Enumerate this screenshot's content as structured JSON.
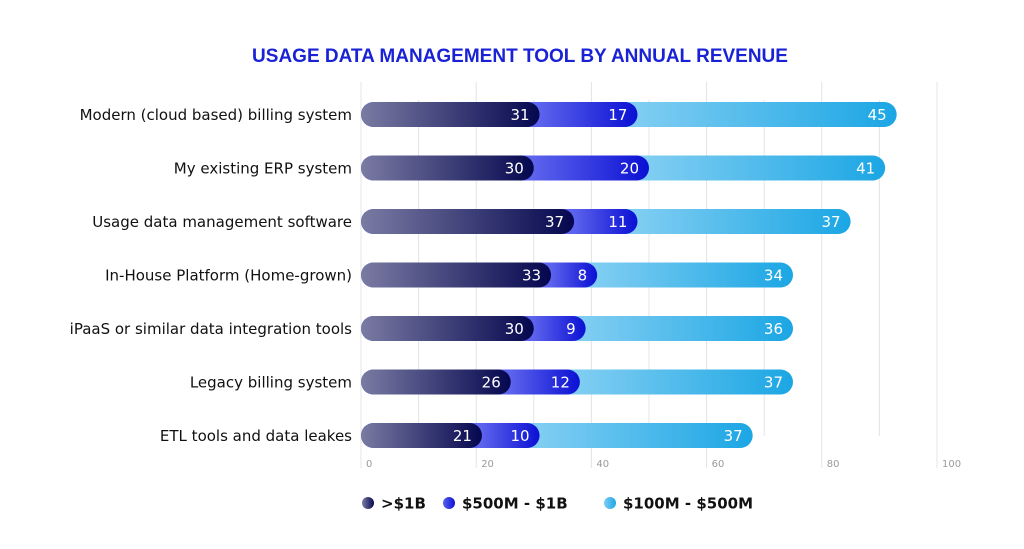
{
  "chart_data": {
    "type": "bar",
    "orientation": "horizontal",
    "stacked": true,
    "title": "USAGE DATA MANAGEMENT TOOL BY ANNUAL REVENUE",
    "xlabel": "",
    "ylabel": "",
    "xlim": [
      0,
      100
    ],
    "xticks": [
      0,
      20,
      40,
      60,
      80,
      100
    ],
    "grid": true,
    "legend_position": "bottom",
    "categories": [
      "Modern (cloud based) billing system",
      "My existing ERP system",
      "Usage data management software",
      "In-House Platform (Home-grown)",
      "iPaaS or similar data integration tools",
      "Legacy billing system",
      "ETL tools and data leakes"
    ],
    "series": [
      {
        "name": ">$1B",
        "color_start": "#7a7ba3",
        "color_end": "#05074f",
        "values": [
          31,
          30,
          37,
          33,
          30,
          26,
          21
        ]
      },
      {
        "name": "$500M - $1B",
        "color_start": "#5c63ec",
        "color_end": "#0b10d4",
        "values": [
          17,
          20,
          11,
          8,
          9,
          12,
          10
        ]
      },
      {
        "name": "$100M - $500M",
        "color_start": "#7fcdf2",
        "color_end": "#1ba6e4",
        "values": [
          45,
          41,
          37,
          34,
          36,
          37,
          37
        ]
      }
    ]
  }
}
